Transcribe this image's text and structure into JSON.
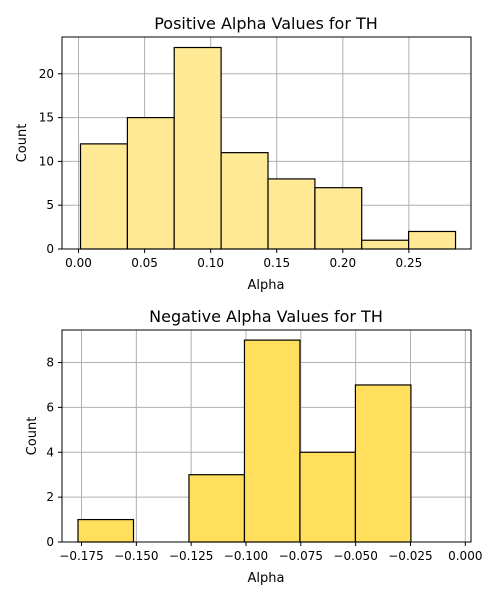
{
  "chart_data": [
    {
      "type": "bar",
      "title": "Positive Alpha Values for TH",
      "xlabel": "Alpha",
      "ylabel": "Count",
      "xlim": [
        -0.0125,
        0.297
      ],
      "ylim": [
        0,
        24.2
      ],
      "grid": true,
      "bar_color": "#ffe994",
      "x_ticks": [
        0.0,
        0.05,
        0.1,
        0.15,
        0.2,
        0.25
      ],
      "x_tick_labels": [
        "0.00",
        "0.05",
        "0.10",
        "0.15",
        "0.20",
        "0.25"
      ],
      "y_ticks": [
        0,
        5,
        10,
        15,
        20
      ],
      "y_tick_labels": [
        "0",
        "5",
        "10",
        "15",
        "20"
      ],
      "bins": [
        {
          "start": 0.0015,
          "end": 0.037,
          "value": 12
        },
        {
          "start": 0.037,
          "end": 0.0724,
          "value": 15
        },
        {
          "start": 0.0724,
          "end": 0.1079,
          "value": 23
        },
        {
          "start": 0.1079,
          "end": 0.1434,
          "value": 11
        },
        {
          "start": 0.1434,
          "end": 0.1789,
          "value": 8
        },
        {
          "start": 0.1789,
          "end": 0.2143,
          "value": 7
        },
        {
          "start": 0.2143,
          "end": 0.2498,
          "value": 1
        },
        {
          "start": 0.2498,
          "end": 0.2853,
          "value": 2
        }
      ]
    },
    {
      "type": "bar",
      "title": "Negative Alpha Values for TH",
      "xlabel": "Alpha",
      "ylabel": "Count",
      "xlim": [
        -0.1839,
        0.0026
      ],
      "ylim": [
        0,
        9.45
      ],
      "grid": true,
      "bar_color": "#ffdf5c",
      "x_ticks": [
        -0.175,
        -0.15,
        -0.125,
        -0.1,
        -0.075,
        -0.05,
        -0.025,
        0.0
      ],
      "x_tick_labels": [
        "−0.175",
        "−0.150",
        "−0.125",
        "−0.100",
        "−0.075",
        "−0.050",
        "−0.025",
        "0.000"
      ],
      "y_ticks": [
        0,
        2,
        4,
        6,
        8
      ],
      "y_tick_labels": [
        "0",
        "2",
        "4",
        "6",
        "8"
      ],
      "bins": [
        {
          "start": -0.1766,
          "end": -0.1513,
          "value": 1
        },
        {
          "start": -0.1513,
          "end": -0.126,
          "value": 0
        },
        {
          "start": -0.126,
          "end": -0.1007,
          "value": 3
        },
        {
          "start": -0.1007,
          "end": -0.0754,
          "value": 9
        },
        {
          "start": -0.0754,
          "end": -0.0501,
          "value": 4
        },
        {
          "start": -0.0501,
          "end": -0.0248,
          "value": 7
        }
      ]
    }
  ]
}
